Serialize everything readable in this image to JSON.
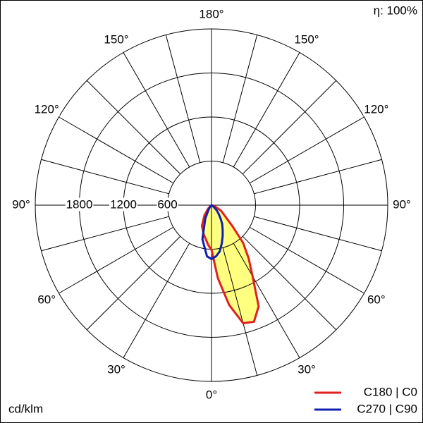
{
  "chart_data": {
    "type": "polar",
    "annotations": {
      "efficiency": "η: 100%",
      "unit": "cd/klm"
    },
    "angle_ticks": [
      {
        "value": 0,
        "label": "0°"
      },
      {
        "value": 30,
        "label": "30°"
      },
      {
        "value": 60,
        "label": "60°"
      },
      {
        "value": 90,
        "label": "90°"
      },
      {
        "value": 120,
        "label": "120°"
      },
      {
        "value": 150,
        "label": "150°"
      },
      {
        "value": 180,
        "label": "180°"
      }
    ],
    "rlim": [
      0,
      2400
    ],
    "rticks": [
      600,
      1200,
      1800
    ],
    "grid": true,
    "angles": [
      -90,
      -60,
      -45,
      -35,
      -25,
      -15,
      -5,
      0,
      5,
      10,
      15,
      20,
      25,
      30,
      35,
      40,
      45,
      60,
      75,
      90
    ],
    "series": [
      {
        "name": "C180 | C0",
        "color": "#e02020",
        "fill": "#ffff80",
        "values": [
          0,
          0,
          60,
          165,
          310,
          410,
          540,
          610,
          1000,
          1380,
          1665,
          1690,
          1520,
          1120,
          880,
          667,
          400,
          150,
          40,
          0
        ]
      },
      {
        "name": "C270 | C90",
        "color": "#1020b0",
        "values": [
          0,
          0,
          20,
          60,
          200,
          480,
          700,
          733,
          700,
          640,
          540,
          445,
          360,
          290,
          210,
          150,
          100,
          20,
          0,
          0
        ]
      }
    ],
    "legend": "bottom-right"
  }
}
